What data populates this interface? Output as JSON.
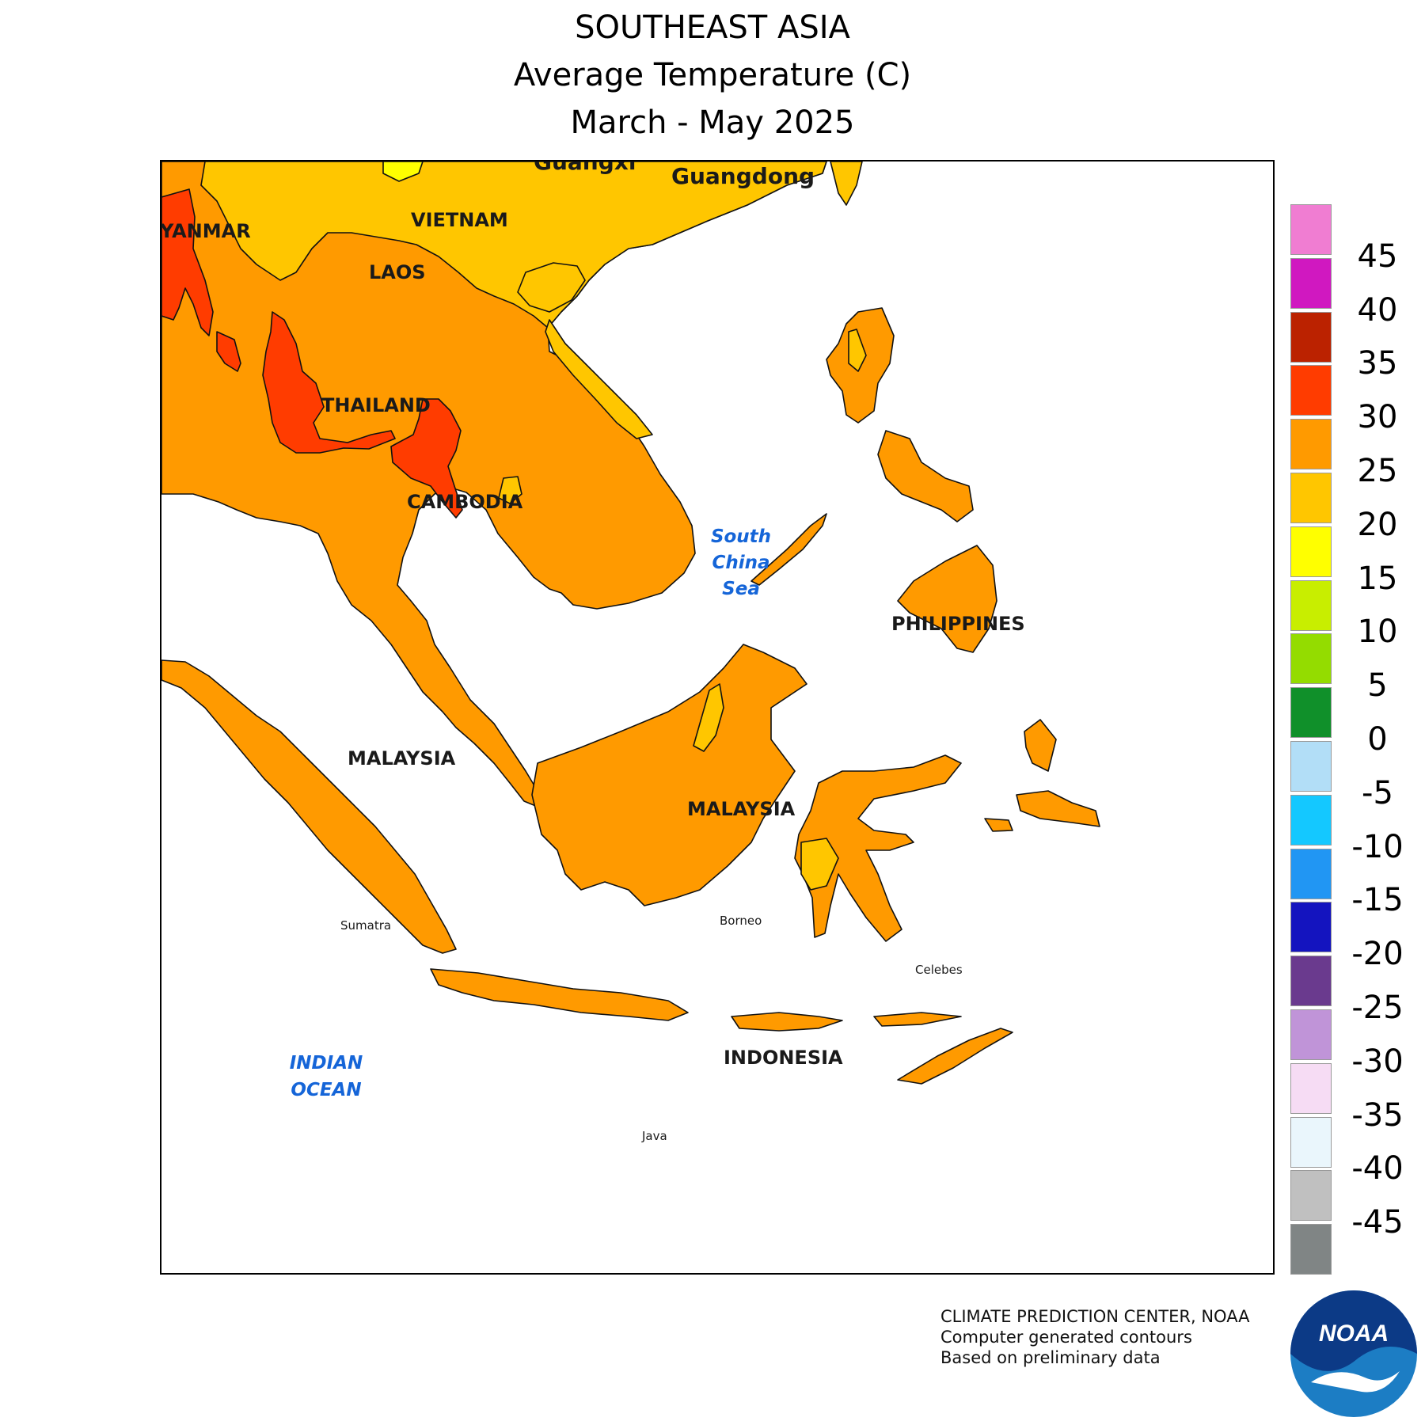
{
  "title": "SOUTHEAST ASIA",
  "subtitle": "Average Temperature (C)",
  "period": "March - May 2025",
  "map": {
    "country_labels": [
      {
        "key": "myanmar",
        "text": "YANMAR"
      },
      {
        "key": "vietnam",
        "text": "VIETNAM"
      },
      {
        "key": "laos",
        "text": "LAOS"
      },
      {
        "key": "thailand",
        "text": "THAILAND"
      },
      {
        "key": "cambodia",
        "text": "CAMBODIA"
      },
      {
        "key": "malaysia-peninsula",
        "text": "MALAYSIA"
      },
      {
        "key": "malaysia-borneo",
        "text": "MALAYSIA"
      },
      {
        "key": "philippines",
        "text": "PHILIPPINES"
      },
      {
        "key": "indonesia",
        "text": "INDONESIA"
      }
    ],
    "region_labels": [
      {
        "key": "guangxi",
        "text": "Guangxi"
      },
      {
        "key": "guangdong",
        "text": "Guangdong"
      }
    ],
    "island_labels": [
      {
        "key": "sumatra",
        "text": "Sumatra"
      },
      {
        "key": "borneo",
        "text": "Borneo"
      },
      {
        "key": "celebes",
        "text": "Celebes"
      },
      {
        "key": "java",
        "text": "Java"
      }
    ],
    "sea_labels": [
      {
        "key": "south-china-sea",
        "lines": [
          "South",
          "China",
          "Sea"
        ]
      },
      {
        "key": "indian-ocean",
        "lines": [
          "INDIAN",
          "OCEAN"
        ]
      }
    ],
    "temperature_zones": {
      "25-30": "#ff9a00",
      "30-35": "#ff3c00",
      "20-25": "#ffc600",
      "15-20": "#ffff00"
    }
  },
  "legend": {
    "bins": [
      {
        "color": "#f07dd2"
      },
      {
        "color": "#d018c0"
      },
      {
        "color": "#bb2200"
      },
      {
        "color": "#ff3c00"
      },
      {
        "color": "#ff9a00"
      },
      {
        "color": "#ffc600"
      },
      {
        "color": "#ffff00"
      },
      {
        "color": "#c8ee00"
      },
      {
        "color": "#94dc00"
      },
      {
        "color": "#10902a"
      },
      {
        "color": "#b2def7"
      },
      {
        "color": "#14c8ff"
      },
      {
        "color": "#2196f3"
      },
      {
        "color": "#1414bf"
      },
      {
        "color": "#6a3a8e"
      },
      {
        "color": "#c094d8"
      },
      {
        "color": "#f6dcf4"
      },
      {
        "color": "#eaf6fc"
      },
      {
        "color": "#c0c0c0"
      },
      {
        "color": "#808585"
      }
    ],
    "ticks": [
      "45",
      "40",
      "35",
      "30",
      "25",
      "20",
      "15",
      "10",
      "5",
      "0",
      "-5",
      "-10",
      "-15",
      "-20",
      "-25",
      "-30",
      "-35",
      "-40",
      "-45"
    ]
  },
  "credits": {
    "line1": "CLIMATE PREDICTION CENTER, NOAA",
    "line2": "Computer generated contours",
    "line3": "Based on preliminary data"
  },
  "logo": {
    "text": "NOAA"
  }
}
